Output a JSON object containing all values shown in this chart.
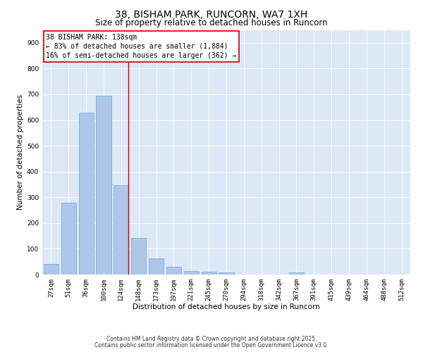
{
  "title1": "38, BISHAM PARK, RUNCORN, WA7 1XH",
  "title2": "Size of property relative to detached houses in Runcorn",
  "xlabel": "Distribution of detached houses by size in Runcorn",
  "ylabel": "Number of detached properties",
  "bar_color": "#aec6e8",
  "bar_edge_color": "#7ab0d8",
  "background_color": "#dce8f5",
  "categories": [
    "27sqm",
    "51sqm",
    "76sqm",
    "100sqm",
    "124sqm",
    "148sqm",
    "173sqm",
    "197sqm",
    "221sqm",
    "245sqm",
    "270sqm",
    "294sqm",
    "318sqm",
    "342sqm",
    "367sqm",
    "391sqm",
    "415sqm",
    "439sqm",
    "464sqm",
    "488sqm",
    "512sqm"
  ],
  "values": [
    40,
    280,
    630,
    695,
    348,
    143,
    62,
    30,
    14,
    10,
    8,
    0,
    0,
    0,
    7,
    0,
    0,
    0,
    0,
    0,
    0
  ],
  "ylim": [
    0,
    950
  ],
  "yticks": [
    0,
    100,
    200,
    300,
    400,
    500,
    600,
    700,
    800,
    900
  ],
  "vline_color": "#cc0000",
  "annotation_lines": [
    "38 BISHAM PARK: 138sqm",
    "← 83% of detached houses are smaller (1,884)",
    "16% of semi-detached houses are larger (362) →"
  ],
  "footnote1": "Contains HM Land Registry data © Crown copyright and database right 2025.",
  "footnote2": "Contains public sector information licensed under the Open Government Licence v3.0.",
  "title1_fontsize": 10,
  "title2_fontsize": 8.5,
  "annotation_fontsize": 7,
  "axis_label_fontsize": 7.5,
  "tick_fontsize": 6.5,
  "footnote_fontsize": 5.5
}
